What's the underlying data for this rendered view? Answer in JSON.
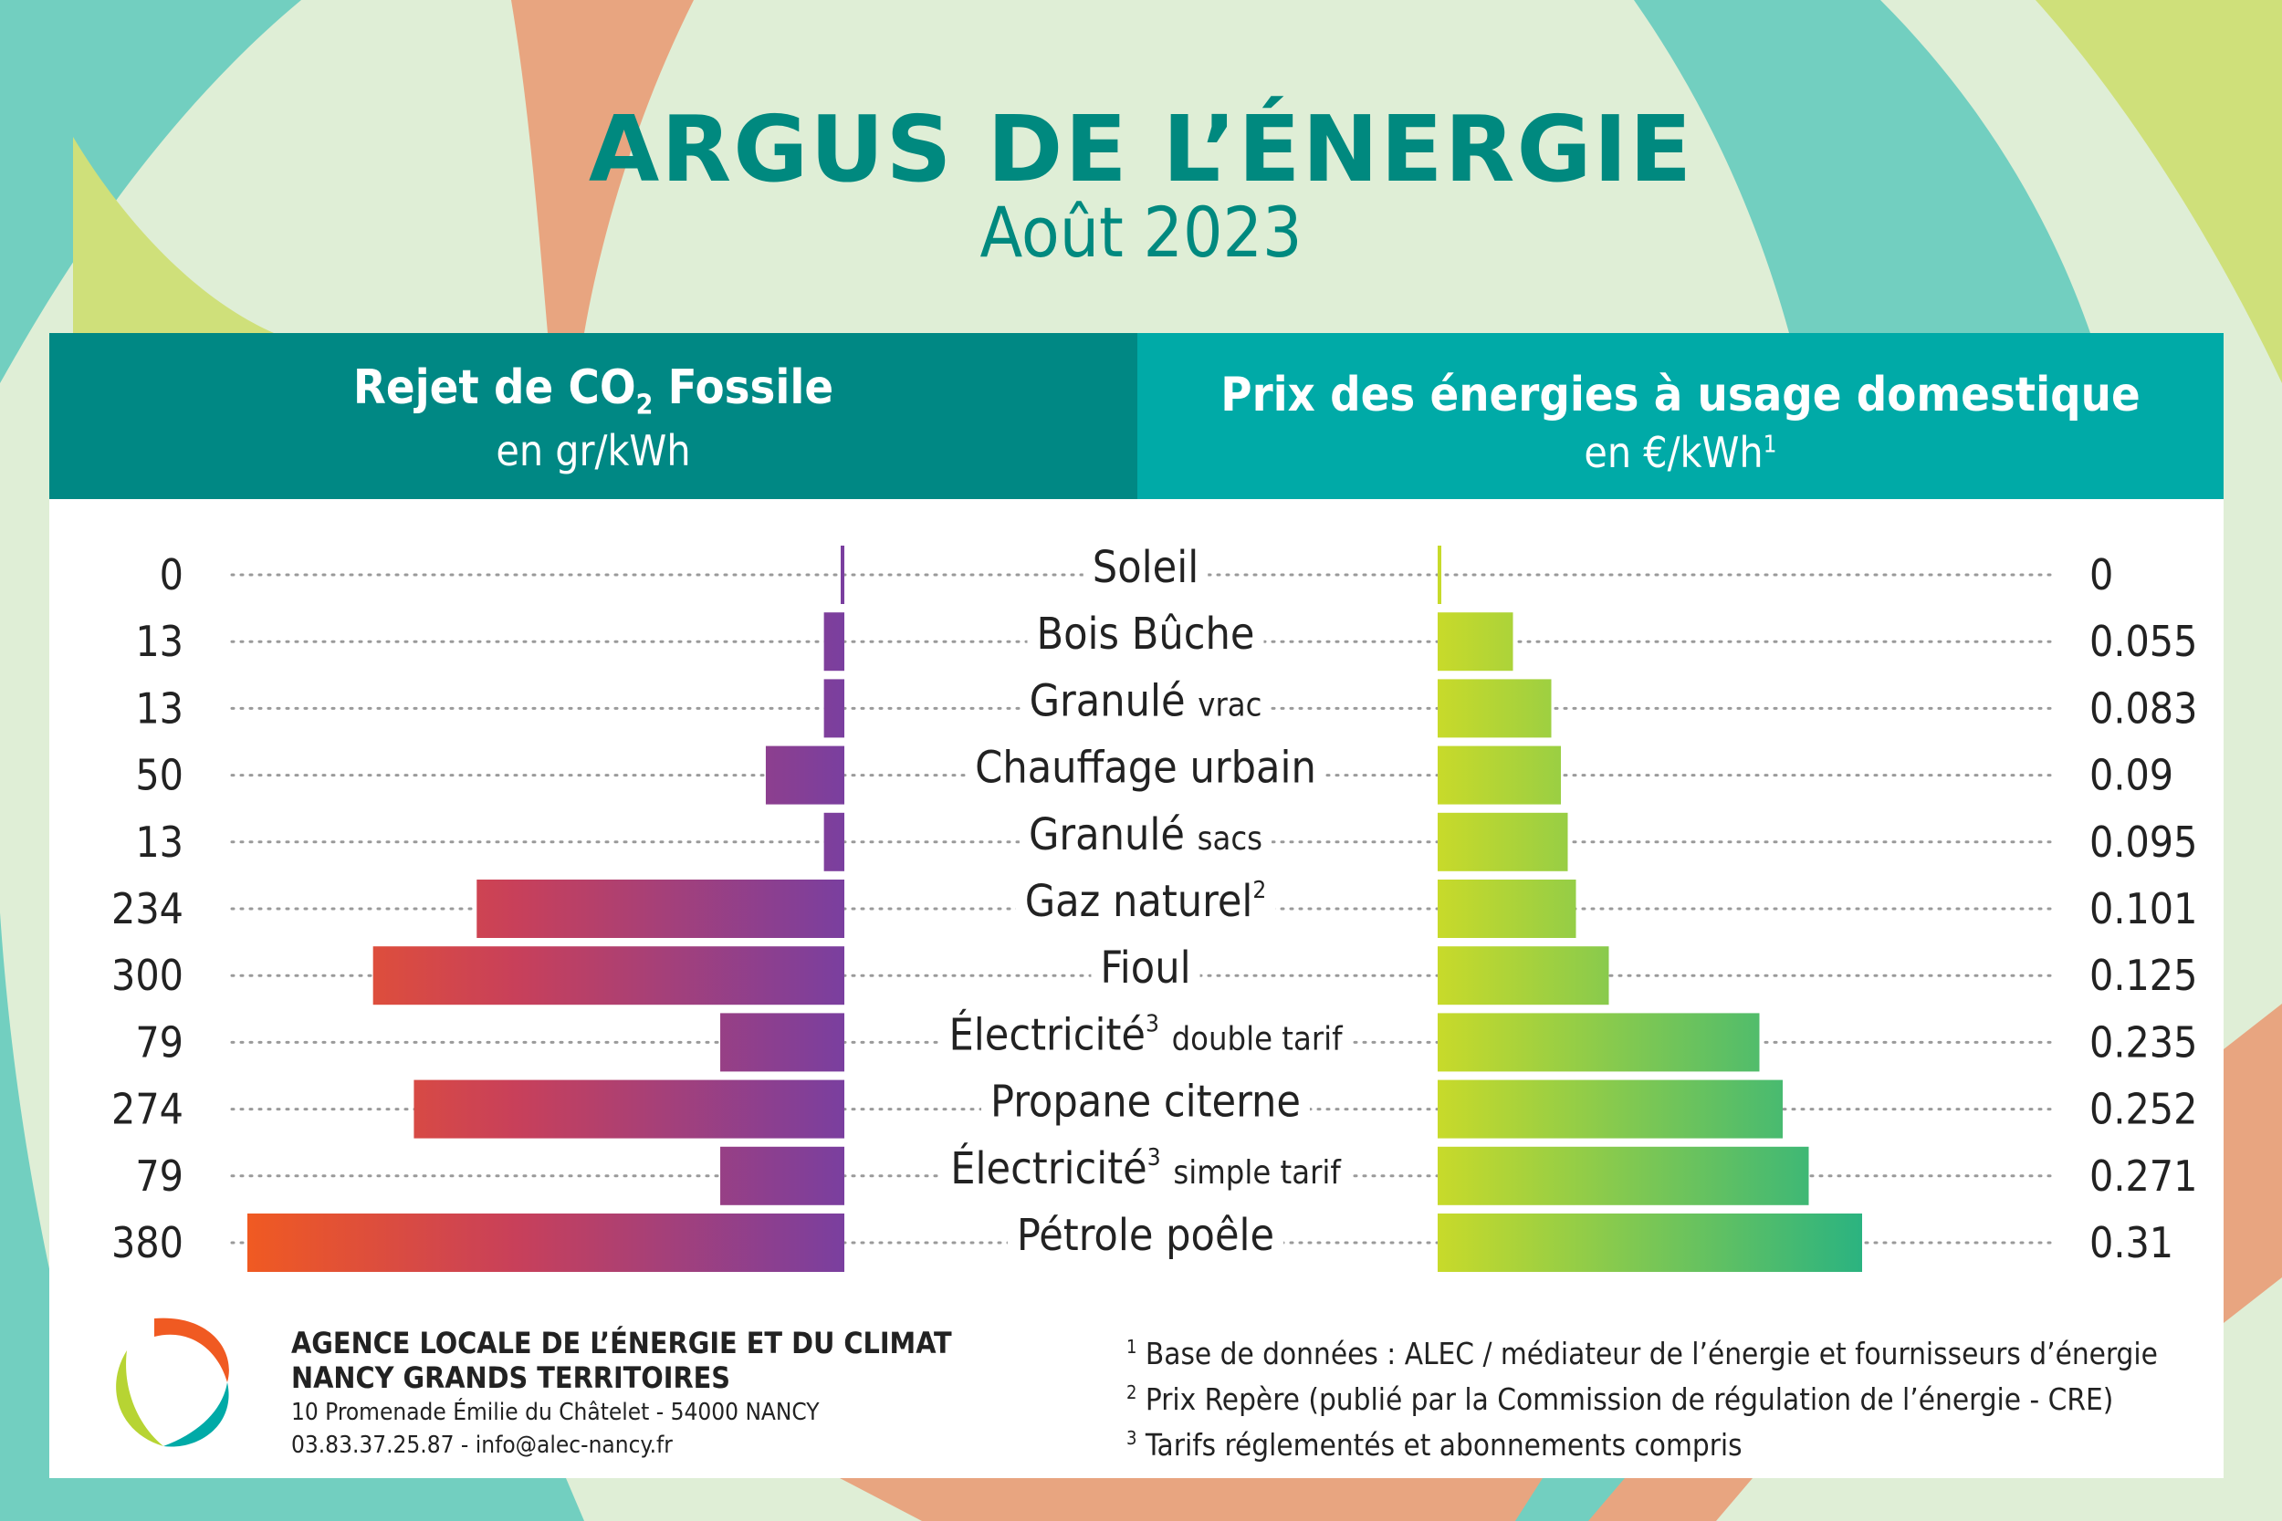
{
  "title": "ARGUS DE L’ÉNERGIE",
  "subtitle": "Août 2023",
  "colors": {
    "header_left": "#008884",
    "header_right": "#00aaa7",
    "title": "#00897f",
    "co2_bar_start": "#f05a22",
    "co2_bar_end": "#7a3f9f",
    "price_bar_start": "#c8da2a",
    "price_bar_end": "#2bb380"
  },
  "left_header": {
    "title_pre": "Rejet de CO",
    "title_sub": "2",
    "title_post": " Fossile",
    "unit": "en gr/kWh"
  },
  "right_header": {
    "title": "Prix des énergies à usage domestique",
    "unit": "en €/kWh",
    "unit_sup": "1"
  },
  "chart_data": {
    "type": "bar",
    "categories": [
      {
        "label": "Soleil",
        "sup": "",
        "suffix": ""
      },
      {
        "label": "Bois Bûche",
        "sup": "",
        "suffix": ""
      },
      {
        "label": "Granulé",
        "sup": "",
        "suffix": "vrac"
      },
      {
        "label": "Chauffage urbain",
        "sup": "",
        "suffix": ""
      },
      {
        "label": "Granulé",
        "sup": "",
        "suffix": "sacs"
      },
      {
        "label": "Gaz naturel",
        "sup": "2",
        "suffix": ""
      },
      {
        "label": "Fioul",
        "sup": "",
        "suffix": ""
      },
      {
        "label": "Électricité",
        "sup": "3",
        "suffix": "double tarif"
      },
      {
        "label": "Propane citerne",
        "sup": "",
        "suffix": ""
      },
      {
        "label": "Électricité",
        "sup": "3",
        "suffix": "simple tarif"
      },
      {
        "label": "Pétrole poêle",
        "sup": "",
        "suffix": ""
      }
    ],
    "series": [
      {
        "name": "Rejet de CO2 Fossile",
        "unit": "gr/kWh",
        "values": [
          0,
          13,
          13,
          50,
          13,
          234,
          300,
          79,
          274,
          79,
          380
        ],
        "labels": [
          "0",
          "13",
          "13",
          "50",
          "13",
          "234",
          "300",
          "79",
          "274",
          "79",
          "380"
        ]
      },
      {
        "name": "Prix des énergies à usage domestique",
        "unit": "€/kWh",
        "values": [
          0,
          0.055,
          0.083,
          0.09,
          0.095,
          0.101,
          0.125,
          0.235,
          0.252,
          0.271,
          0.31
        ],
        "labels": [
          "0",
          "0.055",
          "0.083",
          "0.09",
          "0.095",
          "0.101",
          "0.125",
          "0.235",
          "0.252",
          "0.271",
          "0.31"
        ]
      }
    ],
    "grid": false
  },
  "footer": {
    "agency_line1": "AGENCE LOCALE DE L’ÉNERGIE ET DU CLIMAT",
    "agency_line2": "NANCY GRANDS TERRITOIRES",
    "address": "10 Promenade Émilie du Châtelet - 54000 NANCY",
    "contact": "03.83.37.25.87 - info@alec-nancy.fr"
  },
  "notes": [
    {
      "sup": "1",
      "text": "Base de données : ALEC / médiateur de l’énergie et fournisseurs d’énergie"
    },
    {
      "sup": "2",
      "text": "Prix Repère (publié par la Commission de régulation de l’énergie - CRE)"
    },
    {
      "sup": "3",
      "text": "Tarifs réglementés et abonnements compris"
    }
  ]
}
